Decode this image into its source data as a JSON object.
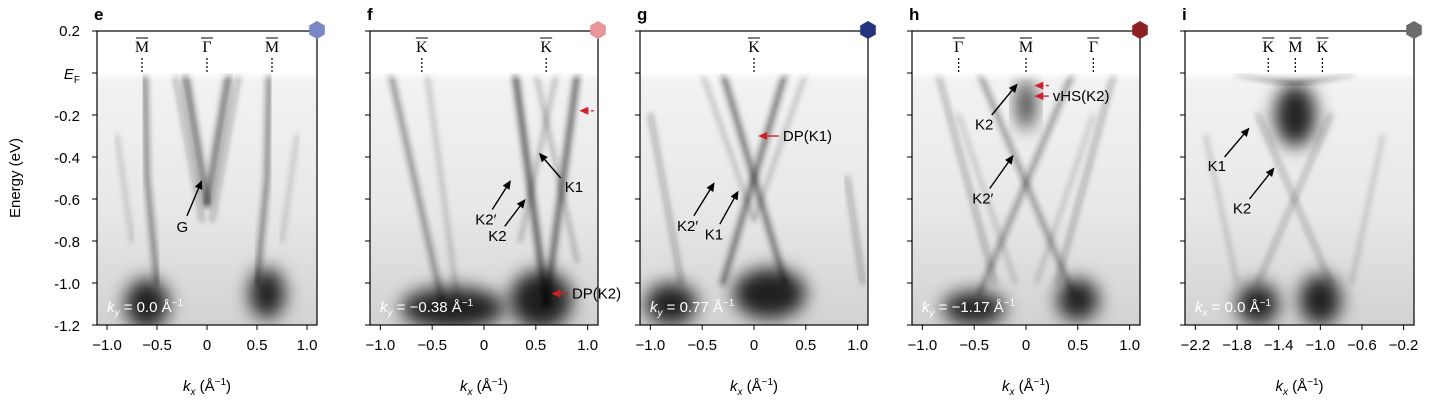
{
  "y_axis": {
    "label": "Energy (eV)",
    "ticks": [
      "0.2",
      "E_F",
      "-0.2",
      "-0.4",
      "-0.6",
      "-0.8",
      "-1.0",
      "-1.2"
    ],
    "ef_label": "E",
    "ef_sub": "F"
  },
  "x_axis_label": {
    "k": "k",
    "sub": "x",
    "unit": " (Å",
    "exp": "−1",
    "close": ")"
  },
  "colors": {
    "panel_e": "#7b86c4",
    "panel_f": "#e8959a",
    "panel_g": "#24337e",
    "panel_h": "#8b2125",
    "panel_i": "#6b6b6b",
    "arrow_black": "#000000",
    "arrow_red": "#d0202a"
  },
  "chart_data": [
    {
      "type": "heatmap",
      "panel": "e",
      "xlim": [
        -1.1,
        1.1
      ],
      "ylim": [
        -1.2,
        0.2
      ],
      "x_ticks": [
        "−1.0",
        "−0.5",
        "0",
        "0.5",
        "1.0"
      ],
      "x_tick_values": [
        -1.0,
        -0.5,
        0,
        0.5,
        1.0
      ],
      "momentum_info": {
        "k": "k",
        "sub": "y",
        "val": " = 0.0 Å",
        "exp": "−1"
      },
      "high_symmetry_points": [
        {
          "label": "M",
          "k": -0.65
        },
        {
          "label": "Γ",
          "k": 0.0
        },
        {
          "label": "M",
          "k": 0.65
        }
      ],
      "annotations": [
        {
          "label": "G",
          "color": "black",
          "from": [
            -0.2,
            -0.68
          ],
          "to": [
            -0.05,
            -0.51
          ]
        }
      ]
    },
    {
      "type": "heatmap",
      "panel": "f",
      "xlim": [
        -1.1,
        1.1
      ],
      "ylim": [
        -1.2,
        0.2
      ],
      "x_ticks": [
        "−1.0",
        "−0.5",
        "0",
        "0.5",
        "1.0"
      ],
      "x_tick_values": [
        -1.0,
        -0.5,
        0,
        0.5,
        1.0
      ],
      "momentum_info": {
        "k": "k",
        "sub": "y",
        "val": " = −0.38 Å",
        "exp": "−1"
      },
      "high_symmetry_points": [
        {
          "label": "K",
          "k": -0.6
        },
        {
          "label": "K",
          "k": 0.6
        }
      ],
      "annotations": [
        {
          "label": "K2′",
          "color": "black",
          "from": [
            0.08,
            -0.65
          ],
          "to": [
            0.26,
            -0.51
          ]
        },
        {
          "label": "K2",
          "color": "black",
          "from": [
            0.2,
            -0.73
          ],
          "to": [
            0.4,
            -0.6
          ]
        },
        {
          "label": "K1",
          "color": "black",
          "from": [
            0.74,
            -0.5
          ],
          "to": [
            0.53,
            -0.38
          ]
        },
        {
          "label": "",
          "color": "red",
          "dashed": true,
          "from": [
            1.06,
            -0.18
          ],
          "to": [
            0.92,
            -0.18
          ]
        },
        {
          "label": "DP(K2)",
          "color": "red",
          "from": [
            0.81,
            -1.05
          ],
          "to": [
            0.65,
            -1.05
          ]
        }
      ]
    },
    {
      "type": "heatmap",
      "panel": "g",
      "xlim": [
        -1.1,
        1.1
      ],
      "ylim": [
        -1.2,
        0.2
      ],
      "x_ticks": [
        "−1.0",
        "−0.5",
        "0",
        "0.5",
        "1.0"
      ],
      "x_tick_values": [
        -1.0,
        -0.5,
        0,
        0.5,
        1.0
      ],
      "momentum_info": {
        "k": "k",
        "sub": "y",
        "val": " = 0.77 Å",
        "exp": "−1"
      },
      "high_symmetry_points": [
        {
          "label": "K",
          "k": 0.0
        }
      ],
      "annotations": [
        {
          "label": "K2′",
          "color": "black",
          "from": [
            -0.58,
            -0.68
          ],
          "to": [
            -0.38,
            -0.52
          ]
        },
        {
          "label": "K1",
          "color": "black",
          "from": [
            -0.33,
            -0.72
          ],
          "to": [
            -0.15,
            -0.56
          ]
        },
        {
          "label": "DP(K1)",
          "color": "red",
          "from": [
            0.24,
            -0.3
          ],
          "to": [
            0.04,
            -0.3
          ]
        }
      ]
    },
    {
      "type": "heatmap",
      "panel": "h",
      "xlim": [
        -1.1,
        1.1
      ],
      "ylim": [
        -1.2,
        0.2
      ],
      "x_ticks": [
        "−1.0",
        "−0.5",
        "0",
        "0.5",
        "1.0"
      ],
      "x_tick_values": [
        -1.0,
        -0.5,
        0,
        0.5,
        1.0
      ],
      "momentum_info": {
        "k": "k",
        "sub": "y",
        "val": " = −1.17 Å",
        "exp": "−1"
      },
      "high_symmetry_points": [
        {
          "label": "Γ",
          "k": -0.65
        },
        {
          "label": "M",
          "k": 0.0
        },
        {
          "label": "Γ",
          "k": 0.65
        }
      ],
      "annotations": [
        {
          "label": "K2",
          "color": "black",
          "from": [
            -0.33,
            -0.2
          ],
          "to": [
            -0.08,
            -0.05
          ]
        },
        {
          "label": "K2′",
          "color": "black",
          "from": [
            -0.35,
            -0.55
          ],
          "to": [
            -0.12,
            -0.39
          ]
        },
        {
          "label": "",
          "color": "red",
          "dashed": true,
          "from": [
            0.22,
            -0.06
          ],
          "to": [
            0.08,
            -0.06
          ]
        },
        {
          "label": "vHS(K2)",
          "color": "red",
          "from": [
            0.22,
            -0.11
          ],
          "to": [
            0.08,
            -0.11
          ]
        }
      ]
    },
    {
      "type": "heatmap",
      "panel": "i",
      "xlim": [
        -2.3,
        -0.1
      ],
      "ylim": [
        -1.2,
        0.2
      ],
      "x_ticks": [
        "−2.2",
        "−1.8",
        "−1.4",
        "−1.0",
        "−0.6",
        "−0.2"
      ],
      "x_tick_values": [
        -2.2,
        -1.8,
        -1.4,
        -1.0,
        -0.6,
        -0.2
      ],
      "momentum_info": {
        "k": "k",
        "sub": "x",
        "val": " = 0.0 Å",
        "exp": "−1"
      },
      "high_symmetry_points": [
        {
          "label": "K",
          "k": -1.5
        },
        {
          "label": "M",
          "k": -1.24
        },
        {
          "label": "K",
          "k": -0.98
        }
      ],
      "annotations": [
        {
          "label": "K1",
          "color": "black",
          "from": [
            -1.92,
            -0.4
          ],
          "to": [
            -1.68,
            -0.26
          ]
        },
        {
          "label": "K2",
          "color": "black",
          "from": [
            -1.68,
            -0.6
          ],
          "to": [
            -1.44,
            -0.45
          ]
        }
      ]
    }
  ]
}
